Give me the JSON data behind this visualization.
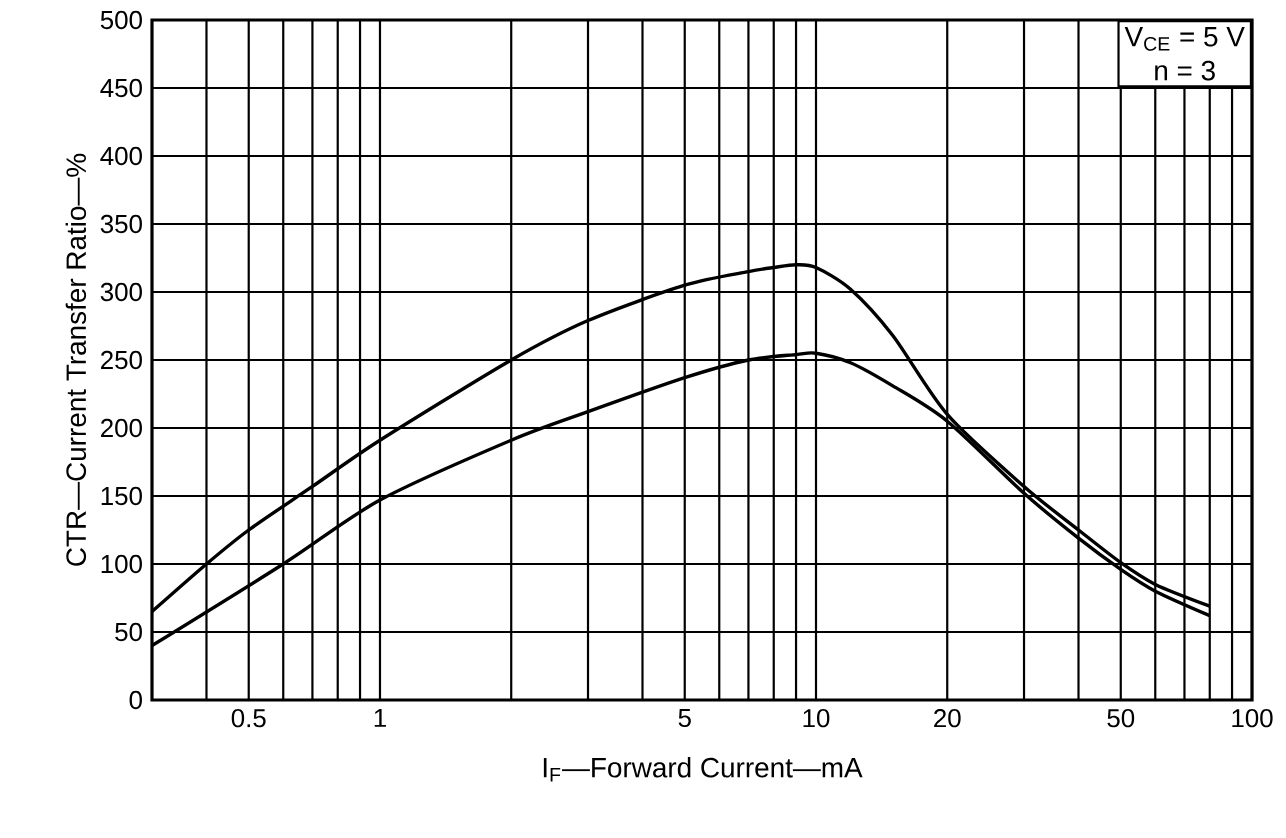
{
  "chart_data": {
    "type": "line",
    "xlabel": "I$_{F}$—Forward Current—mA",
    "ylabel": "CTR—Current Transfer Ratio—%",
    "annotations": [
      "V$_{CE}$ = 5 V",
      "n = 3"
    ],
    "log": "x",
    "grid": true,
    "xlim": [
      0.3,
      100
    ],
    "ylim": [
      0,
      500
    ],
    "xticks": [
      {
        "value": 0.4,
        "label": null
      },
      0.5,
      {
        "value": 0.6,
        "label": null
      },
      {
        "value": 0.7,
        "label": null
      },
      {
        "value": 0.8,
        "label": null
      },
      {
        "value": 0.9,
        "label": null
      },
      1,
      {
        "value": 2,
        "label": null
      },
      {
        "value": 3,
        "label": null
      },
      {
        "value": 4,
        "label": null
      },
      5,
      {
        "value": 6,
        "label": null
      },
      {
        "value": 7,
        "label": null
      },
      {
        "value": 8,
        "label": null
      },
      {
        "value": 9,
        "label": null
      },
      10,
      20,
      {
        "value": 30,
        "label": null
      },
      {
        "value": 40,
        "label": null
      },
      50,
      {
        "value": 60,
        "label": null
      },
      {
        "value": 70,
        "label": null
      },
      {
        "value": 80,
        "label": null
      },
      {
        "value": 90,
        "label": null
      },
      100
    ],
    "yticks": [
      0,
      50,
      100,
      150,
      200,
      250,
      300,
      350,
      400,
      450,
      500
    ],
    "series": [
      {
        "color": "#000000",
        "x": [
          0.3,
          0.4,
          0.5,
          0.7,
          1,
          2,
          3,
          5,
          7,
          8,
          9,
          10,
          12,
          15,
          20,
          30,
          40,
          50,
          60,
          80
        ],
        "values": [
          65,
          100,
          125,
          157,
          191,
          250,
          279,
          305,
          315,
          318,
          320,
          318,
          302,
          268,
          210,
          157,
          125,
          101,
          85,
          69
        ]
      },
      {
        "color": "#000000",
        "x": [
          0.3,
          0.6,
          1,
          2,
          3,
          5,
          7,
          9,
          10,
          12,
          15,
          20,
          30,
          40,
          50,
          60,
          80
        ],
        "values": [
          40,
          100,
          147,
          191,
          212,
          237,
          250,
          254,
          255,
          248,
          231,
          205,
          152,
          119,
          96,
          80,
          62
        ]
      }
    ]
  }
}
